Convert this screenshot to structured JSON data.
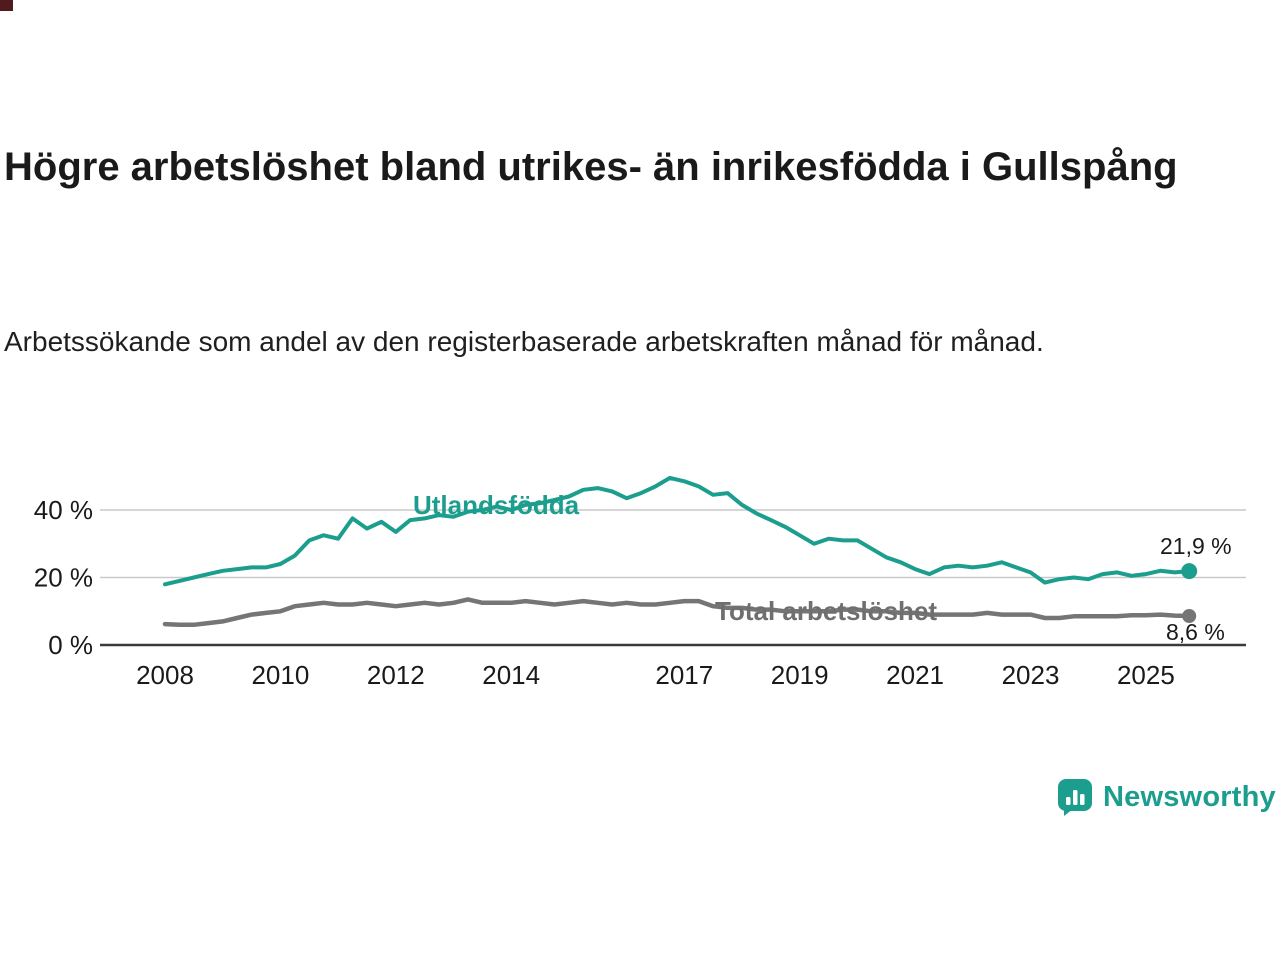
{
  "title": "Högre arbetslöshet bland utrikes- än inrikesfödda i Gullspång",
  "subtitle": "Arbetssökande som andel av den registerbaserade arbetskraften månad för månad.",
  "branding": {
    "name": "Newsworthy",
    "accent_color": "#1b9e8e"
  },
  "chart_data": {
    "type": "line",
    "title": "Högre arbetslöshet bland utrikes- än inrikesfödda i Gullspång",
    "subtitle": "Arbetssökande som andel av den registerbaserade arbetskraften månad för månad.",
    "xlabel": "",
    "ylabel": "",
    "ylim": [
      0,
      50
    ],
    "grid": "horizontal",
    "legend": "inline-labels",
    "y_ticks": [
      {
        "value": 40,
        "label": "40 %"
      },
      {
        "value": 20,
        "label": "20 %"
      },
      {
        "value": 0,
        "label": "0 %"
      }
    ],
    "x_ticks": [
      {
        "value": 2008,
        "label": "2008"
      },
      {
        "value": 2010,
        "label": "2010"
      },
      {
        "value": 2012,
        "label": "2012"
      },
      {
        "value": 2014,
        "label": "2014"
      },
      {
        "value": 2017,
        "label": "2017"
      },
      {
        "value": 2019,
        "label": "2019"
      },
      {
        "value": 2021,
        "label": "2021"
      },
      {
        "value": 2023,
        "label": "2023"
      },
      {
        "value": 2025,
        "label": "2025"
      }
    ],
    "x": [
      2008,
      2008.25,
      2008.5,
      2008.75,
      2009,
      2009.25,
      2009.5,
      2009.75,
      2010,
      2010.25,
      2010.5,
      2010.75,
      2011,
      2011.25,
      2011.5,
      2011.75,
      2012,
      2012.25,
      2012.5,
      2012.75,
      2013,
      2013.25,
      2013.5,
      2013.75,
      2014,
      2014.25,
      2014.5,
      2014.75,
      2015,
      2015.25,
      2015.5,
      2015.75,
      2016,
      2016.25,
      2016.5,
      2016.75,
      2017,
      2017.25,
      2017.5,
      2017.75,
      2018,
      2018.25,
      2018.5,
      2018.75,
      2019,
      2019.25,
      2019.5,
      2019.75,
      2020,
      2020.25,
      2020.5,
      2020.75,
      2021,
      2021.25,
      2021.5,
      2021.75,
      2022,
      2022.25,
      2022.5,
      2022.75,
      2023,
      2023.25,
      2023.5,
      2023.75,
      2024,
      2024.25,
      2024.5,
      2024.75,
      2025,
      2025.25,
      2025.5,
      2025.75
    ],
    "series": [
      {
        "name": "Utlandsfödda",
        "color": "#1b9e8e",
        "end_label": "21,9 %",
        "end_value": 21.9,
        "values": [
          18.0,
          19.0,
          20.0,
          21.0,
          22.0,
          22.5,
          23.0,
          23.0,
          24.0,
          26.5,
          31.0,
          32.5,
          31.5,
          37.5,
          34.5,
          36.5,
          33.5,
          37.0,
          37.5,
          38.5,
          38.0,
          39.5,
          40.0,
          41.0,
          40.0,
          41.5,
          42.0,
          43.0,
          44.0,
          46.0,
          46.5,
          45.5,
          43.5,
          45.0,
          47.0,
          49.5,
          48.5,
          47.0,
          44.5,
          45.0,
          41.5,
          39.0,
          37.0,
          35.0,
          32.5,
          30.0,
          31.5,
          31.0,
          31.0,
          28.5,
          26.0,
          24.5,
          22.5,
          21.0,
          23.0,
          23.5,
          23.0,
          23.5,
          24.5,
          23.0,
          21.5,
          18.5,
          19.5,
          20.0,
          19.5,
          21.0,
          21.5,
          20.5,
          21.0,
          22.0,
          21.5,
          21.9
        ]
      },
      {
        "name": "Total arbetslöshet",
        "color": "#757575",
        "end_label": "8,6 %",
        "end_value": 8.6,
        "values": [
          6.2,
          6.0,
          6.0,
          6.5,
          7.0,
          8.0,
          9.0,
          9.5,
          10.0,
          11.5,
          12.0,
          12.5,
          12.0,
          12.0,
          12.5,
          12.0,
          11.5,
          12.0,
          12.5,
          12.0,
          12.5,
          13.5,
          12.5,
          12.5,
          12.5,
          13.0,
          12.5,
          12.0,
          12.5,
          13.0,
          12.5,
          12.0,
          12.5,
          12.0,
          12.0,
          12.5,
          13.0,
          13.0,
          11.5,
          11.0,
          11.0,
          10.5,
          10.5,
          10.0,
          10.0,
          10.0,
          10.0,
          10.5,
          10.5,
          10.0,
          10.0,
          9.5,
          9.5,
          9.0,
          9.0,
          9.0,
          9.0,
          9.5,
          9.0,
          9.0,
          9.0,
          8.0,
          8.0,
          8.5,
          8.5,
          8.5,
          8.5,
          8.8,
          8.8,
          9.0,
          8.7,
          8.6
        ]
      }
    ]
  }
}
